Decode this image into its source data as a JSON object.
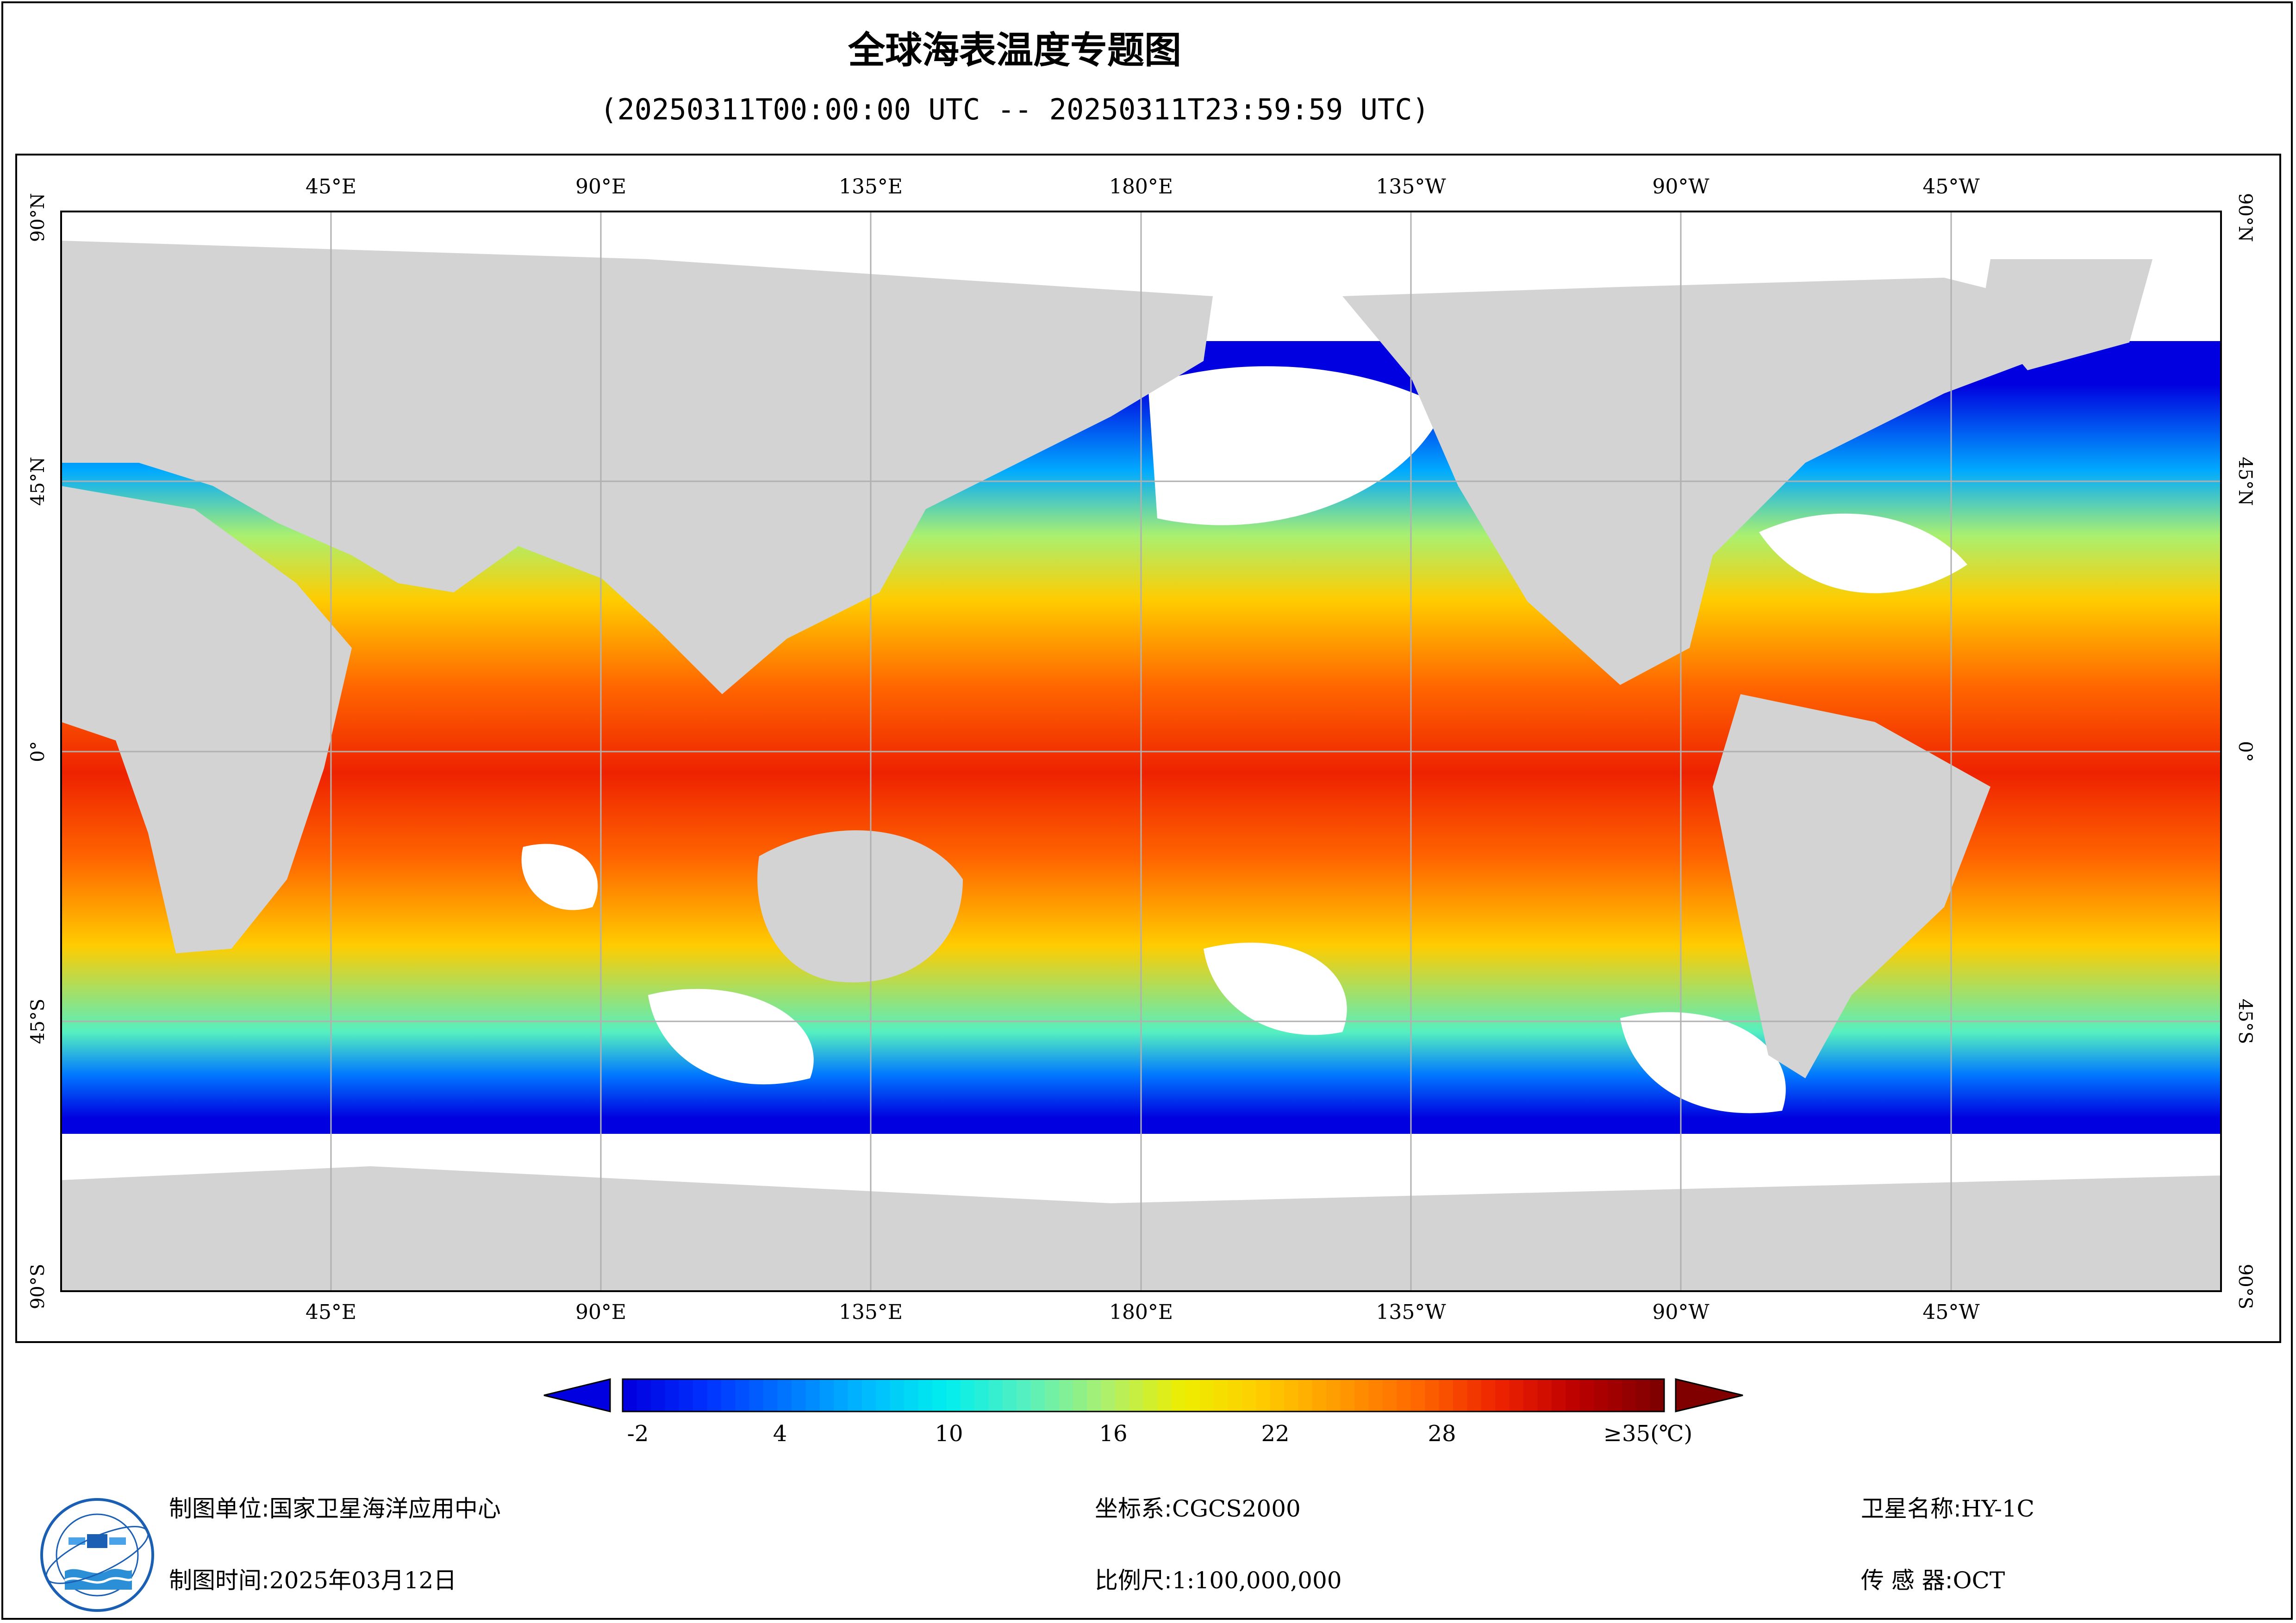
{
  "title": "全球海表温度专题图",
  "subtitle": "(20250311T00:00:00 UTC -- 20250311T23:59:59 UTC)",
  "map": {
    "top_lon_labels": [
      "45°E",
      "90°E",
      "135°E",
      "180°E",
      "135°W",
      "90°W",
      "45°W"
    ],
    "bottom_lon_labels": [
      "45°E",
      "90°E",
      "135°E",
      "180°E",
      "135°W",
      "90°W",
      "45°W"
    ],
    "lat_labels": [
      "90°N",
      "45°N",
      "0°",
      "45°S",
      "90°S"
    ],
    "colors": {
      "land": "#d3d3d3",
      "no_data": "#ffffff",
      "grid": "#b0b0b0"
    },
    "variable": "sea surface temperature"
  },
  "legend": {
    "ticks": [
      "-2",
      "4",
      "10",
      "16",
      "22",
      "28"
    ],
    "max_label": "≥35(℃)",
    "tick_values": [
      -2,
      4,
      10,
      16,
      22,
      28,
      35
    ],
    "colors": [
      "#0000e0",
      "#0033ff",
      "#0077ff",
      "#00bbff",
      "#00eeee",
      "#55f0c0",
      "#aaf070",
      "#eeee00",
      "#ffcc00",
      "#ff9900",
      "#ff6600",
      "#ee2200",
      "#bb0000",
      "#800000"
    ],
    "under_color": "#0000e0",
    "over_color": "#800000"
  },
  "footer": {
    "producer_label": "制图单位:",
    "producer_value": "国家卫星海洋应用中心",
    "date_label": "制图时间:",
    "date_value": "2025年03月12日",
    "crs_label": "坐标系:",
    "crs_value": "CGCS2000",
    "scale_label": "比例尺:",
    "scale_value": "1:100,000,000",
    "satellite_label": "卫星名称:",
    "satellite_value": "HY-1C",
    "sensor_label": "传 感 器:",
    "sensor_value": "OCT"
  },
  "logo_icon": "nsoas-logo-icon"
}
